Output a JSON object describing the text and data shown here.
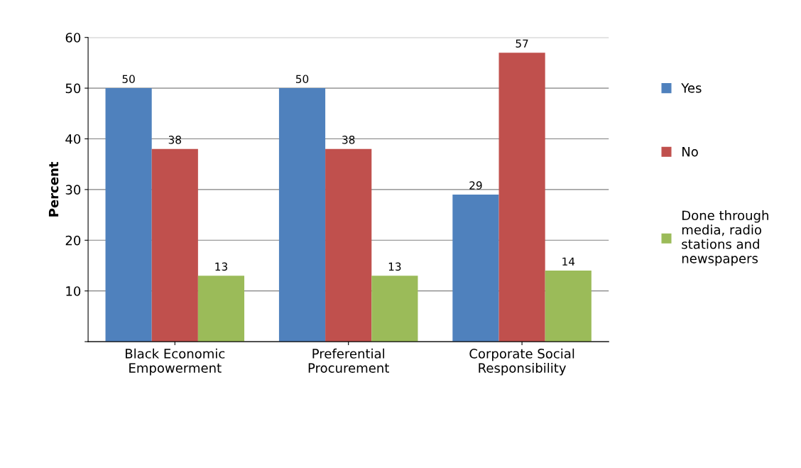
{
  "chart_data": {
    "type": "bar",
    "ylabel": "Percent",
    "categories": [
      "Black Economic\nEmpowerment",
      "Preferential\nProcurement",
      "Corporate Social\nResponsibility"
    ],
    "series": [
      {
        "name": "Yes",
        "color": "#4f81bd",
        "values": [
          50,
          50,
          29
        ]
      },
      {
        "name": "No",
        "color": "#c0504d",
        "values": [
          38,
          38,
          57
        ]
      },
      {
        "name": "Done through\nmedia, radio\nstations and\nnewspapers",
        "color": "#9bbb59",
        "values": [
          13,
          13,
          14
        ]
      }
    ],
    "ylim": [
      0,
      60
    ],
    "yticks": [
      {
        "value": 0,
        "label": null
      },
      10,
      20,
      30,
      40,
      50,
      60
    ],
    "grid": "y",
    "legend": "right",
    "data_labels": true
  }
}
